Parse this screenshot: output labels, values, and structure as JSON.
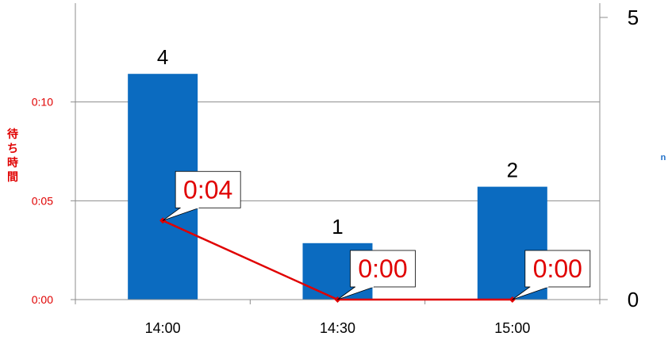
{
  "chart_data": {
    "type": "bar+line",
    "categories": [
      "14:00",
      "14:30",
      "15:00"
    ],
    "bars": {
      "axis": "secondary",
      "values": [
        4,
        1,
        2
      ],
      "data_labels": [
        "4",
        "1",
        "2"
      ],
      "color": "#0b6bc0"
    },
    "line": {
      "axis": "primary",
      "values": [
        0.04,
        0.0,
        0.0
      ],
      "data_labels": [
        "0:04",
        "0:00",
        "0:00"
      ],
      "color": "#e00000"
    },
    "y_axis": {
      "label": "待ち時間",
      "ticks": [
        "0:00",
        "0:05",
        "0:10"
      ],
      "tick_values": [
        0,
        0.05,
        0.1
      ],
      "range": [
        0,
        0.15
      ],
      "color": "#e00000"
    },
    "y2_axis": {
      "label": "n",
      "ticks": [
        "0",
        "5"
      ],
      "tick_values": [
        0,
        5
      ],
      "range": [
        0,
        5
      ],
      "color": "#1f6fc8"
    },
    "grid": true,
    "legend": "none"
  }
}
